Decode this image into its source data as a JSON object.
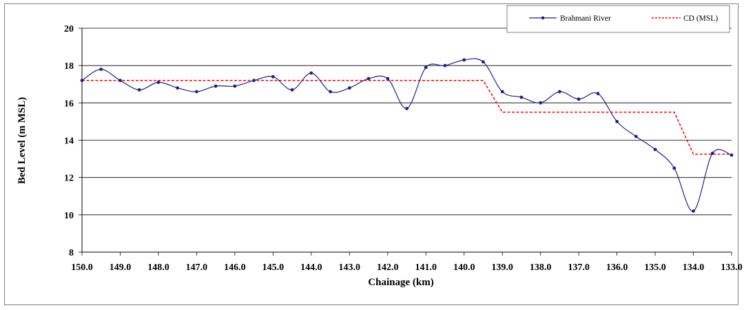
{
  "chart_data": {
    "type": "line",
    "title": "",
    "xlabel": "Chainage (km)",
    "ylabel": "Bed Level (m MSL)",
    "x_reversed": true,
    "xlim": [
      150.0,
      133.0
    ],
    "ylim": [
      8,
      20
    ],
    "y_ticks": [
      8,
      10,
      12,
      14,
      16,
      18,
      20
    ],
    "x_tick_labels": [
      "150.0",
      "149.0",
      "148.0",
      "147.0",
      "146.0",
      "145.0",
      "144.0",
      "143.0",
      "142.0",
      "141.0",
      "140.0",
      "139.0",
      "138.0",
      "137.0",
      "136.0",
      "135.0",
      "134.0",
      "133.0"
    ],
    "grid": "horizontal",
    "legend_position": "top-right",
    "series": [
      {
        "name": "Brahmani River",
        "color": "#1f1f8f",
        "style": "smooth line with dot markers",
        "x": [
          150.0,
          149.5,
          149.0,
          148.5,
          148.0,
          147.5,
          147.0,
          146.5,
          146.0,
          145.5,
          145.0,
          144.5,
          144.0,
          143.5,
          143.0,
          142.5,
          142.0,
          141.5,
          141.0,
          140.5,
          140.0,
          139.5,
          139.0,
          138.5,
          138.0,
          137.5,
          137.0,
          136.5,
          136.0,
          135.5,
          135.0,
          134.5,
          134.0,
          133.5,
          133.0
        ],
        "y": [
          17.2,
          17.8,
          17.2,
          16.7,
          17.1,
          16.8,
          16.6,
          16.9,
          16.9,
          17.2,
          17.4,
          16.7,
          17.6,
          16.6,
          16.8,
          17.3,
          17.3,
          15.7,
          17.9,
          18.0,
          18.3,
          18.2,
          16.6,
          16.3,
          16.0,
          16.6,
          16.2,
          16.5,
          15.0,
          14.2,
          13.5,
          12.5,
          10.2,
          13.3,
          13.2
        ]
      },
      {
        "name": "CD (MSL)",
        "color": "#ff0000",
        "style": "dashed step line",
        "x": [
          150.0,
          139.5,
          139.0,
          134.5,
          134.0,
          133.0
        ],
        "y": [
          17.2,
          17.2,
          15.5,
          15.5,
          13.25,
          13.25
        ]
      }
    ]
  }
}
